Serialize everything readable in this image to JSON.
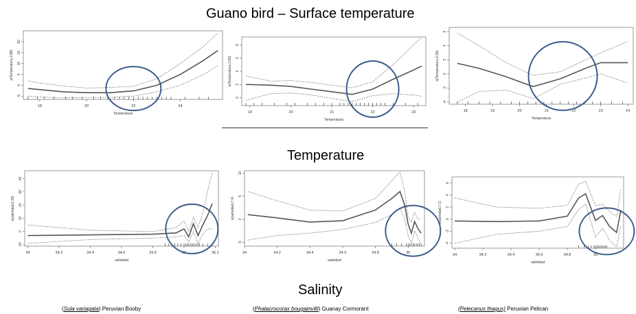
{
  "headings": {
    "title": "Guano  bird – Surface temperature",
    "temperature": "Temperature",
    "salinity": "Salinity"
  },
  "captions": [
    {
      "open": "(",
      "sci": "Sula variagata",
      "close": ")",
      "common": " Peruvian Booby",
      "italic_paren": false
    },
    {
      "open": "(",
      "sci": "Phalacrocorax bougainvilli",
      "close": ")",
      "common": " Guanay Cormorant",
      "italic_paren": false
    },
    {
      "open": "(",
      "sci": "Pelecanus thagus)",
      "close": "",
      "common": " Peruvian Pelican",
      "italic_paren": true
    }
  ],
  "colors": {
    "line": "#555555",
    "band": "#777777",
    "circle": "#3b5a8c"
  },
  "chart_data": [
    {
      "type": "line",
      "xlabel": "Temperatura",
      "ylabel": "s(Temperatura,3.88)",
      "xlim": [
        17.3,
        25.8
      ],
      "ylim": [
        -6.5,
        25
      ],
      "xticks": [
        18,
        20,
        22,
        24
      ],
      "yticks": [
        -5,
        0,
        5,
        10,
        15,
        20
      ],
      "x": [
        17.5,
        18,
        19,
        20,
        21,
        22,
        23,
        24,
        25,
        25.6
      ],
      "fit": [
        -1.5,
        -2,
        -3,
        -3.4,
        -3.4,
        -2.6,
        0,
        5,
        11.5,
        16
      ],
      "lower": [
        -5,
        -5.3,
        -5.8,
        -5.6,
        -5.6,
        -5,
        -3,
        0,
        5,
        9
      ],
      "upper": [
        2,
        1,
        -0.3,
        -1.3,
        -1,
        -0.5,
        3,
        10,
        18,
        24
      ],
      "rug": [
        17.5,
        17.9,
        18.2,
        18.6,
        19.1,
        19.4,
        19.8,
        20.3,
        20.6,
        20.9,
        21.2,
        21.4,
        21.6,
        21.8,
        22,
        22.2,
        22.4,
        22.6,
        22.8,
        23,
        23.2,
        23.4,
        23.6,
        24.2,
        24.8,
        25.2
      ]
    },
    {
      "type": "line",
      "xlabel": "Temperatura",
      "ylabel": "s(Temperatura,3.59)",
      "xlim": [
        18.8,
        23.3
      ],
      "ylim": [
        -1.2,
        9.2
      ],
      "xticks": [
        19,
        20,
        21,
        22,
        23
      ],
      "yticks": [
        0,
        2,
        4,
        6,
        8
      ],
      "x": [
        18.9,
        19.5,
        20,
        20.5,
        21,
        21.5,
        22,
        22.5,
        23,
        23.2
      ],
      "fit": [
        2,
        1.9,
        1.7,
        1.3,
        0.9,
        0.5,
        1.3,
        2.8,
        4.2,
        4.8
      ],
      "lower": [
        -0.4,
        0.6,
        0.7,
        0.4,
        -0.1,
        -0.6,
        0.3,
        0.6,
        0.4,
        0.2
      ],
      "upper": [
        3.3,
        2.5,
        2.6,
        2.3,
        1.9,
        1.5,
        2.4,
        5,
        8,
        9.2
      ],
      "rug": [
        18.9,
        19.1,
        19.3,
        19.6,
        19.9,
        20.1,
        20.4,
        20.6,
        20.8,
        21,
        21.2,
        21.3,
        21.4,
        21.5,
        21.6,
        21.7,
        21.8,
        21.9,
        22,
        22.1,
        22.2,
        22.3,
        22.5,
        22.8,
        23.1
      ]
    },
    {
      "type": "line",
      "xlabel": "Temperatura",
      "ylabel": "s(Temperatura,2.28)",
      "xlim": [
        17.4,
        24.2
      ],
      "ylim": [
        -4.3,
        6.6
      ],
      "xticks": [
        18,
        19,
        20,
        21,
        22,
        23,
        24
      ],
      "yticks": [
        -4,
        -2,
        0,
        2,
        4,
        6
      ],
      "x": [
        17.7,
        18.5,
        19.5,
        20.5,
        21.5,
        22.5,
        23,
        24
      ],
      "fit": [
        1.5,
        0.8,
        -0.4,
        -1.8,
        -0.7,
        0.9,
        1.6,
        1.6
      ],
      "lower": [
        -4,
        -2.5,
        -2.3,
        -3.5,
        -1.5,
        -0.5,
        0,
        -1.3
      ],
      "upper": [
        5.8,
        4,
        1.6,
        -0.2,
        0.3,
        2.1,
        3,
        4.6
      ],
      "rug": [
        17.7,
        18.1,
        18.5,
        18.9,
        19.3,
        19.7,
        20,
        20.3,
        20.6,
        20.9,
        21.2,
        21.5,
        21.8,
        22.1,
        22.4,
        22.7,
        23,
        23.4,
        23.8
      ]
    },
    {
      "type": "line",
      "xlabel": "salinidad",
      "ylabel": "s(salinidad,6.39)",
      "xlim": [
        33.98,
        35.22
      ],
      "ylim": [
        -11,
        46
      ],
      "xticks": [
        34.0,
        34.2,
        34.4,
        34.6,
        34.8,
        35.0,
        35.2
      ],
      "yticks": [
        -10,
        0,
        10,
        20,
        30,
        40
      ],
      "x": [
        34.0,
        34.4,
        34.8,
        34.95,
        35.0,
        35.03,
        35.06,
        35.09,
        35.12,
        35.15,
        35.18
      ],
      "fit": [
        -3,
        -2.5,
        -2,
        -1,
        2,
        -4,
        6,
        -3,
        5,
        12,
        21
      ],
      "lower": [
        -9,
        -6,
        -5,
        -4,
        -3,
        -8,
        0,
        -9,
        -2,
        2,
        2
      ],
      "upper": [
        5,
        1,
        0,
        3,
        8,
        0,
        11,
        3,
        14,
        30,
        45
      ],
      "rug": [
        34.88,
        34.9,
        34.92,
        34.94,
        34.96,
        34.98,
        35.0,
        35.01,
        35.02,
        35.03,
        35.04,
        35.05,
        35.06,
        35.07,
        35.08,
        35.09,
        35.1,
        35.12,
        35.15,
        35.18
      ]
    },
    {
      "type": "line",
      "xlabel": "salinidad",
      "ylabel": "s(salinidad,7.4)",
      "xlim": [
        34.0,
        35.1
      ],
      "ylim": [
        -5.8,
        10.5
      ],
      "xticks": [
        34.0,
        34.2,
        34.4,
        34.6,
        34.8,
        35.0
      ],
      "yticks": [
        -5,
        0,
        5,
        10
      ],
      "x": [
        34.02,
        34.2,
        34.4,
        34.6,
        34.8,
        34.9,
        34.95,
        34.98,
        35.0,
        35.02,
        35.04,
        35.06,
        35.08
      ],
      "fit": [
        1,
        0.3,
        -0.6,
        -0.3,
        2,
        4.5,
        6,
        3,
        -1,
        -3,
        -0.5,
        -2,
        -3
      ],
      "lower": [
        -4.5,
        -3.5,
        -3,
        -2.2,
        -0.7,
        1,
        2.5,
        0,
        -3.5,
        -5.2,
        -2.5,
        -4,
        -5.5
      ],
      "upper": [
        6,
        4,
        2,
        1.8,
        4.5,
        8.3,
        10.2,
        6,
        0.5,
        -0.5,
        1.5,
        0,
        0
      ],
      "rug": [
        34.9,
        34.93,
        34.96,
        34.99,
        35.0,
        35.01,
        35.02,
        35.03,
        35.04,
        35.05,
        35.06,
        35.07,
        35.08
      ]
    },
    {
      "type": "line",
      "xlabel": "salinidad",
      "ylabel": "s(salinidad,7.1)",
      "xlim": [
        33.98,
        35.2
      ],
      "ylim": [
        -4.8,
        7
      ],
      "xticks": [
        34.0,
        34.2,
        34.4,
        34.6,
        34.8,
        35.0
      ],
      "yticks": [
        -4,
        -2,
        0,
        2,
        4,
        6
      ],
      "x": [
        34.0,
        34.3,
        34.6,
        34.8,
        34.88,
        34.93,
        35.0,
        35.05,
        35.1,
        35.15,
        35.18
      ],
      "fit": [
        -0.3,
        -0.4,
        -0.3,
        0.5,
        3.5,
        4.2,
        -0.2,
        0.6,
        -1.2,
        -2.2,
        1.5
      ],
      "lower": [
        -4,
        -2.5,
        -2,
        -1.2,
        1.6,
        2.5,
        -3,
        -1.5,
        -3.5,
        -4.6,
        -1
      ],
      "upper": [
        3.5,
        2,
        1.8,
        2.3,
        5.8,
        6.3,
        2.2,
        2.5,
        1.2,
        0.5,
        5
      ],
      "rug": [
        34.88,
        34.92,
        34.95,
        34.97,
        34.99,
        35.0,
        35.01,
        35.02,
        35.03,
        35.04,
        35.05,
        35.06,
        35.07,
        35.08
      ]
    }
  ]
}
